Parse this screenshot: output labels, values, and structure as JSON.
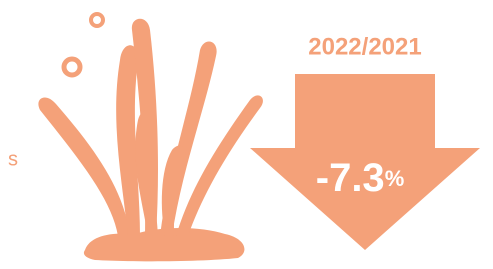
{
  "side_text": "s",
  "period": "2022/2021",
  "change": "-7.3",
  "change_unit": "%"
}
